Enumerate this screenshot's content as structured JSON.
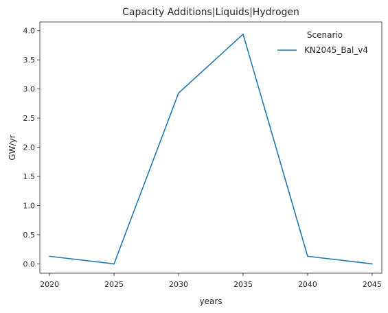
{
  "chart_data": {
    "type": "line",
    "title": "Capacity Additions|Liquids|Hydrogen",
    "xlabel": "years",
    "ylabel": "GW/yr",
    "x": [
      2020,
      2025,
      2030,
      2035,
      2040,
      2045
    ],
    "xticks": [
      "2020",
      "2025",
      "2030",
      "2035",
      "2040",
      "2045"
    ],
    "yticks": [
      "0.0",
      "0.5",
      "1.0",
      "1.5",
      "2.0",
      "2.5",
      "3.0",
      "3.5",
      "4.0"
    ],
    "xlim": [
      2019.25,
      2045.75
    ],
    "ylim": [
      -0.16,
      4.15
    ],
    "grid": false,
    "legend": {
      "title": "Scenario",
      "placement": "top-right"
    },
    "series": [
      {
        "name": "KN2045_Bal_v4",
        "color": "#1f77b4",
        "values": [
          0.13,
          0.0,
          2.93,
          3.94,
          0.13,
          0.0
        ]
      }
    ]
  }
}
